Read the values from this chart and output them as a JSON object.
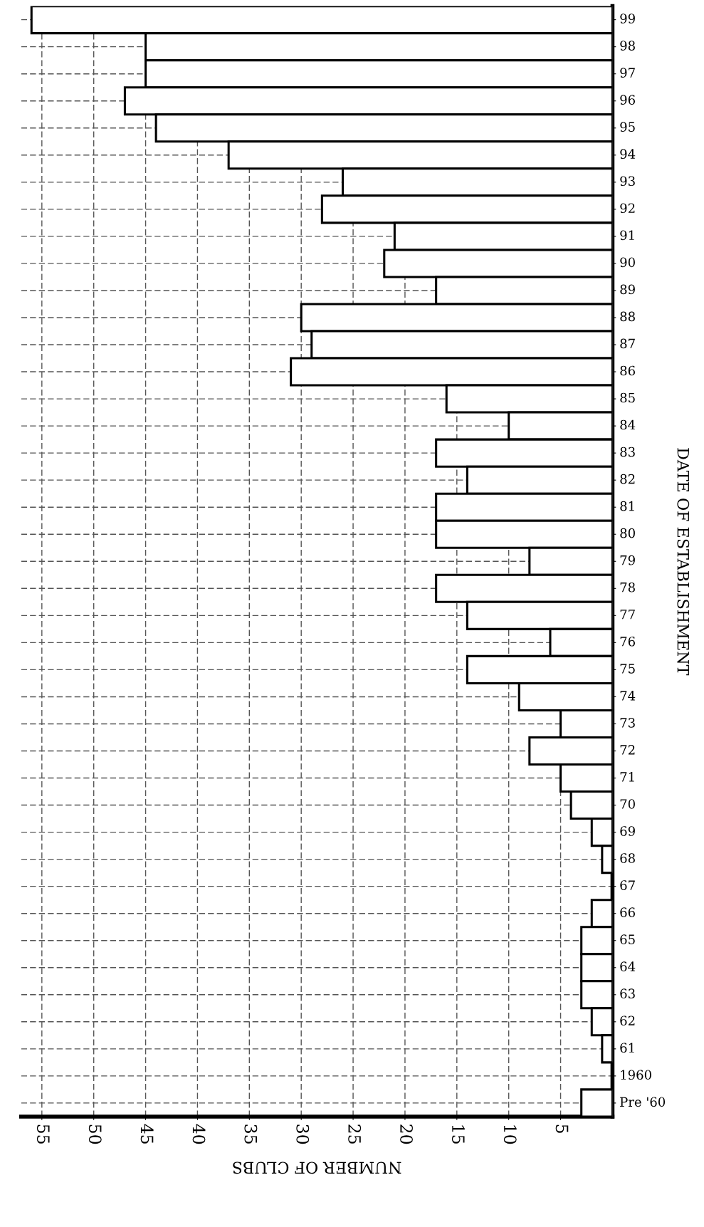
{
  "chart_data": {
    "type": "bar",
    "orientation": "horizontal",
    "xlabel": "NUMBER OF CLUBS",
    "ylabel": "DATE OF ESTABLISHMENT",
    "categories": [
      "99",
      "98",
      "97",
      "96",
      "95",
      "94",
      "93",
      "92",
      "91",
      "90",
      "89",
      "88",
      "87",
      "86",
      "85",
      "84",
      "83",
      "82",
      "81",
      "80",
      "79",
      "78",
      "77",
      "76",
      "75",
      "74",
      "73",
      "72",
      "71",
      "70",
      "69",
      "68",
      "67",
      "66",
      "65",
      "64",
      "63",
      "62",
      "61",
      "1960",
      "Pre '60"
    ],
    "values": [
      56,
      45,
      45,
      47,
      44,
      37,
      26,
      28,
      21,
      22,
      17,
      30,
      29,
      31,
      16,
      10,
      17,
      14,
      17,
      17,
      8,
      17,
      14,
      6,
      14,
      9,
      5,
      8,
      5,
      4,
      2,
      1,
      0,
      2,
      3,
      3,
      3,
      2,
      1,
      0,
      3
    ],
    "color": "#ffffff",
    "xlim": [
      57,
      0
    ],
    "xticks": [
      5,
      10,
      15,
      20,
      25,
      30,
      35,
      40,
      45,
      50,
      55
    ],
    "grid": true
  }
}
